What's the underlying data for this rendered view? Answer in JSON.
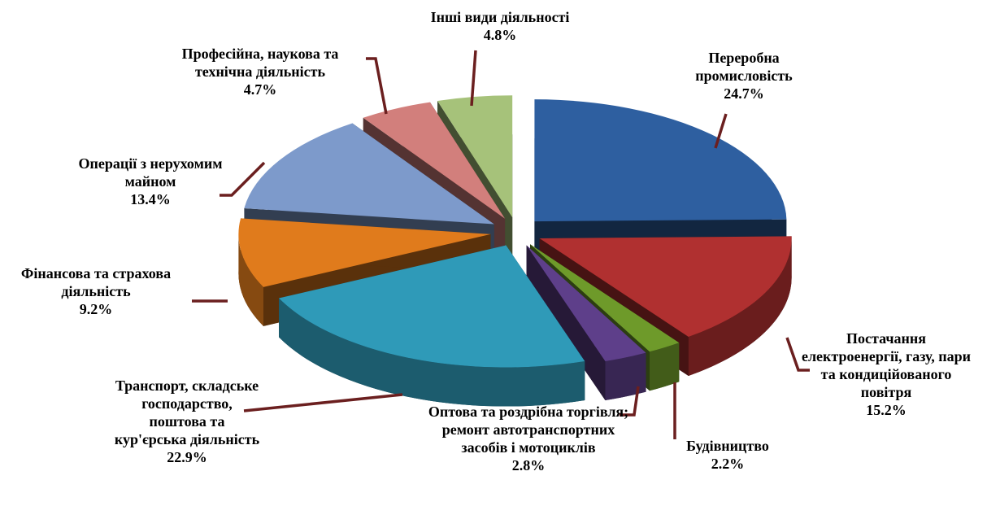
{
  "chart_data": {
    "type": "pie3d",
    "categories": [
      "Переробна промисловість",
      "Постачання електроенергії, газу, пари та кондиційованого повітря",
      "Будівництво",
      "Оптова та роздрібна торгівля; ремонт автотранспортних засобів і мотоциклів",
      "Транспорт, складське господарство, поштова та кур'єрська діяльність",
      "Фінансова та страхова діяльність",
      "Операції з нерухомим майном",
      "Професійна, наукова та технічна діяльність",
      "Інші види діяльності"
    ],
    "values": [
      24.7,
      15.2,
      2.2,
      2.8,
      22.9,
      9.2,
      13.4,
      4.7,
      4.8
    ],
    "value_labels": [
      "24.7%",
      "15.2%",
      "2.2%",
      "2.8%",
      "22.9%",
      "9.2%",
      "13.4%",
      "4.7%",
      "4.8%"
    ],
    "colors": [
      "#2e5fa0",
      "#b03030",
      "#6e9a2a",
      "#5e3f8a",
      "#2f9ab8",
      "#e07b1c",
      "#7d9acb",
      "#d27f7c",
      "#a6c27a"
    ]
  }
}
